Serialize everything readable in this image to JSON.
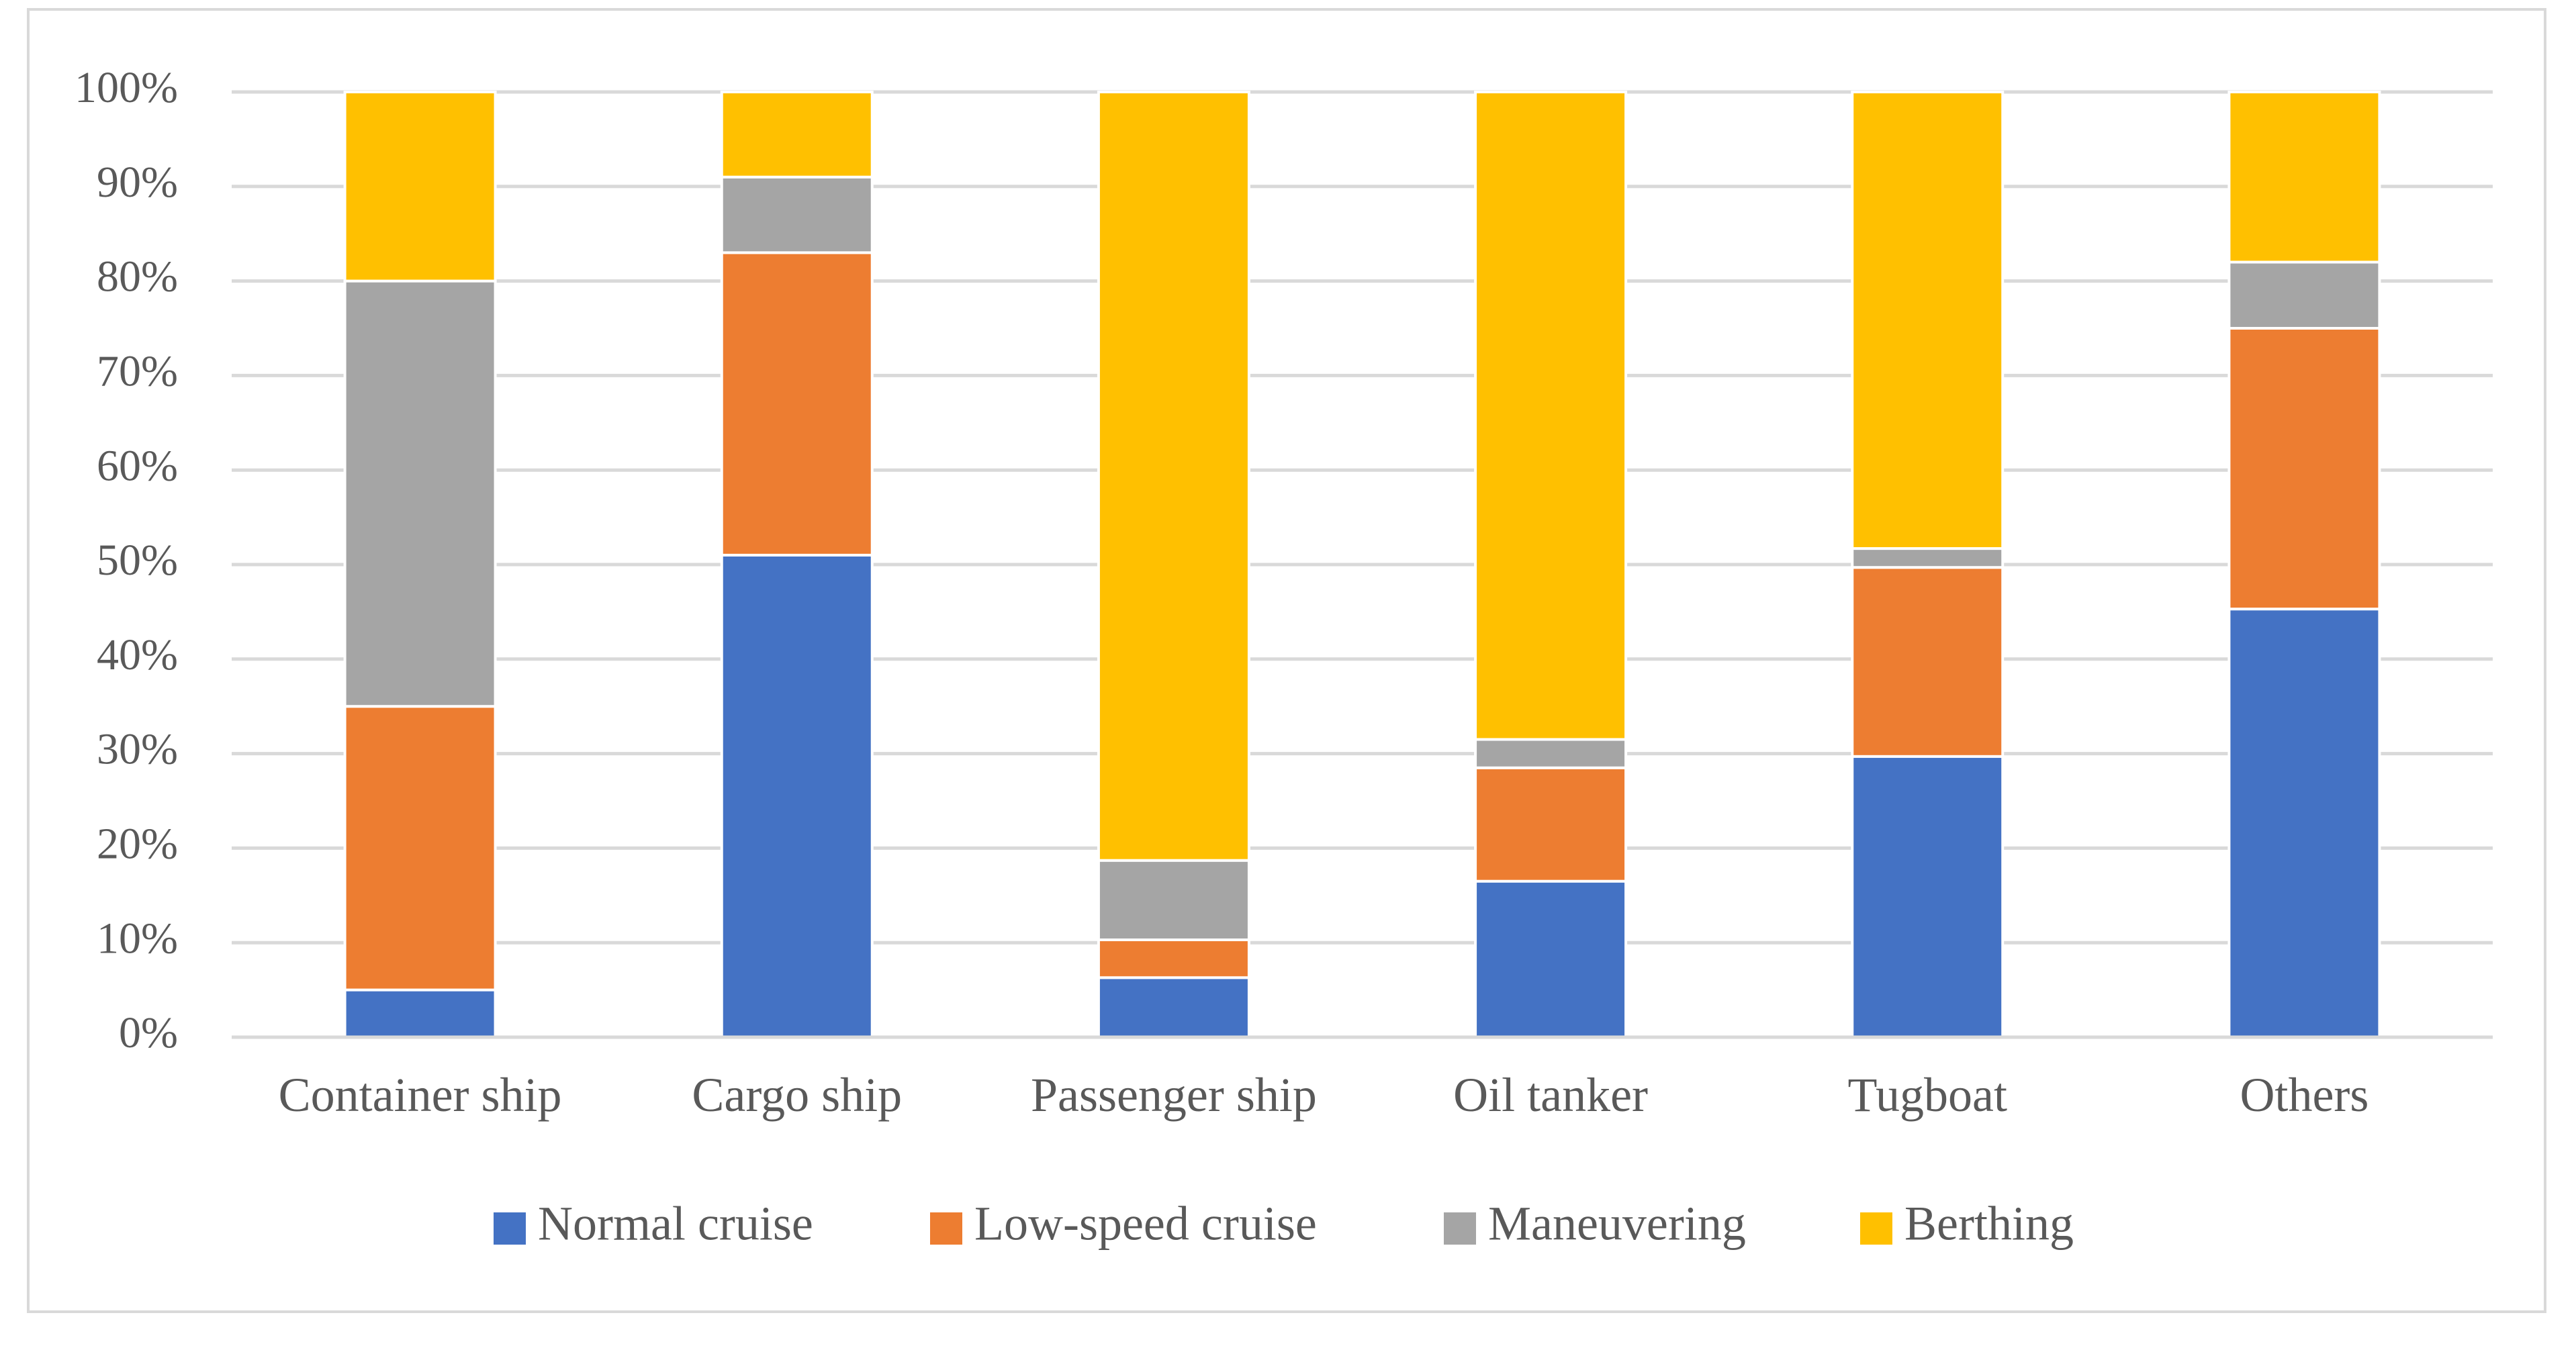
{
  "chart_data": {
    "type": "bar",
    "stacked": true,
    "percent": true,
    "title": "",
    "xlabel": "",
    "ylabel": "",
    "ylim": [
      0,
      100
    ],
    "yticks": [
      "0%",
      "10%",
      "20%",
      "30%",
      "40%",
      "50%",
      "60%",
      "70%",
      "80%",
      "90%",
      "100%"
    ],
    "grid": true,
    "legend_position": "bottom",
    "categories": [
      "Container ship",
      "Cargo ship",
      "Passenger ship",
      "Oil tanker",
      "Tugboat",
      "Others"
    ],
    "series": [
      {
        "name": "Normal cruise",
        "color": "#4472C4",
        "values": [
          5,
          51,
          6.3,
          16.5,
          29.7,
          45.3
        ]
      },
      {
        "name": "Low-speed cruise",
        "color": "#ED7D31",
        "values": [
          30,
          32,
          4,
          12,
          20,
          29.7
        ]
      },
      {
        "name": "Maneuvering",
        "color": "#A5A5A5",
        "values": [
          45,
          8,
          8.4,
          3,
          2,
          7
        ]
      },
      {
        "name": "Berthing",
        "color": "#FFC000",
        "values": [
          20,
          9,
          81.3,
          68.5,
          48.3,
          18
        ]
      }
    ]
  }
}
